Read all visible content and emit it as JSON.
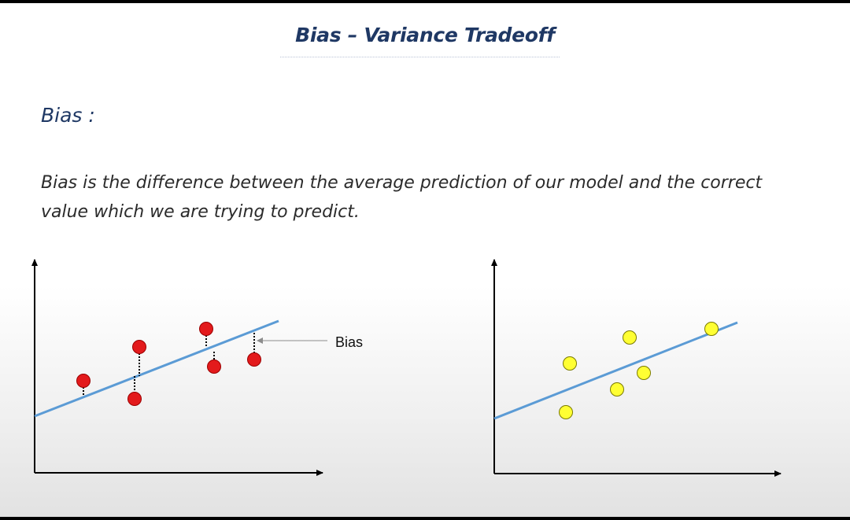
{
  "slide": {
    "title": "Bias – Variance Tradeoff",
    "heading": "Bias :",
    "definition": "Bias is the difference between the average prediction of our model and the correct value which we are trying to predict."
  },
  "figures": {
    "left": {
      "annotation_label": "Bias",
      "point_color": "#e31a1c",
      "line_color": "#5b9bd5"
    },
    "right": {
      "point_color": "#ffff33",
      "line_color": "#5b9bd5"
    }
  }
}
